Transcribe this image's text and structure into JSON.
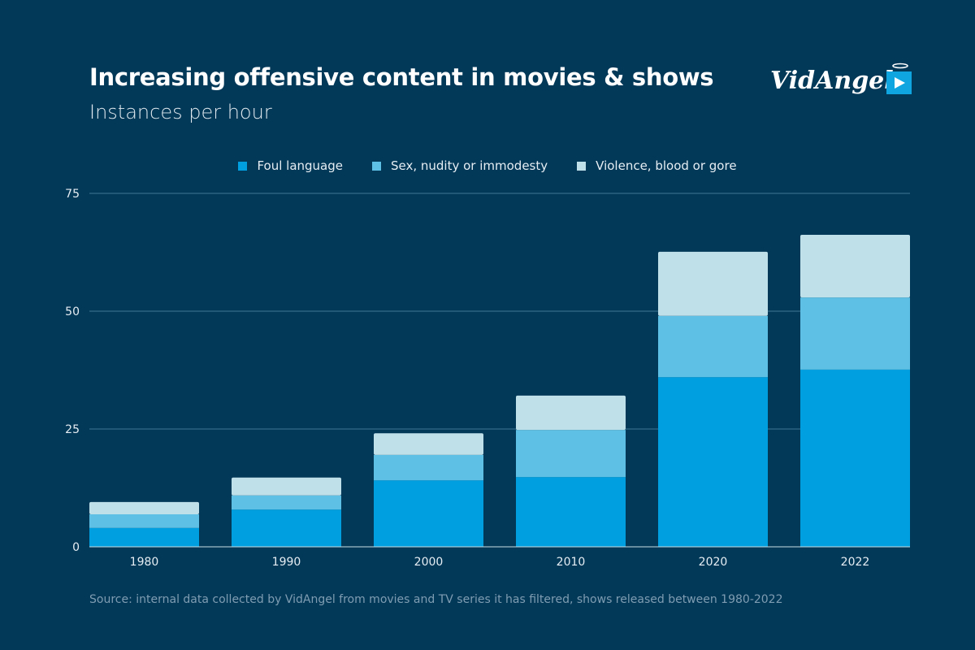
{
  "title": "Increasing offensive content in movies & shows",
  "subtitle": "Instances per hour",
  "logo": {
    "text": "VidAngel",
    "icon": "play-icon",
    "color": "#0ea5e0"
  },
  "source": "Source: internal data collected by VidAngel from movies and TV series it has filtered, shows released between 1980-2022",
  "chart_data": {
    "type": "bar",
    "stacked": true,
    "categories": [
      "1980",
      "1990",
      "2000",
      "2010",
      "2020",
      "2022"
    ],
    "series": [
      {
        "name": "Foul language",
        "color": "#00a0e0",
        "values": [
          4.0,
          7.9,
          14.1,
          14.8,
          36.0,
          37.6
        ]
      },
      {
        "name": "Sex, nudity or immodesty",
        "color": "#5ec0e4",
        "values": [
          2.9,
          3.0,
          5.4,
          10.0,
          13.0,
          15.3
        ]
      },
      {
        "name": "Violence, blood or gore",
        "color": "#bfdfe9",
        "values": [
          2.6,
          3.8,
          4.6,
          7.3,
          13.6,
          13.3
        ]
      }
    ],
    "yticks": [
      0,
      25,
      50,
      75
    ],
    "ylim": [
      0,
      75
    ],
    "grid": true,
    "legend": "top-center",
    "xlabel": "",
    "ylabel": ""
  }
}
